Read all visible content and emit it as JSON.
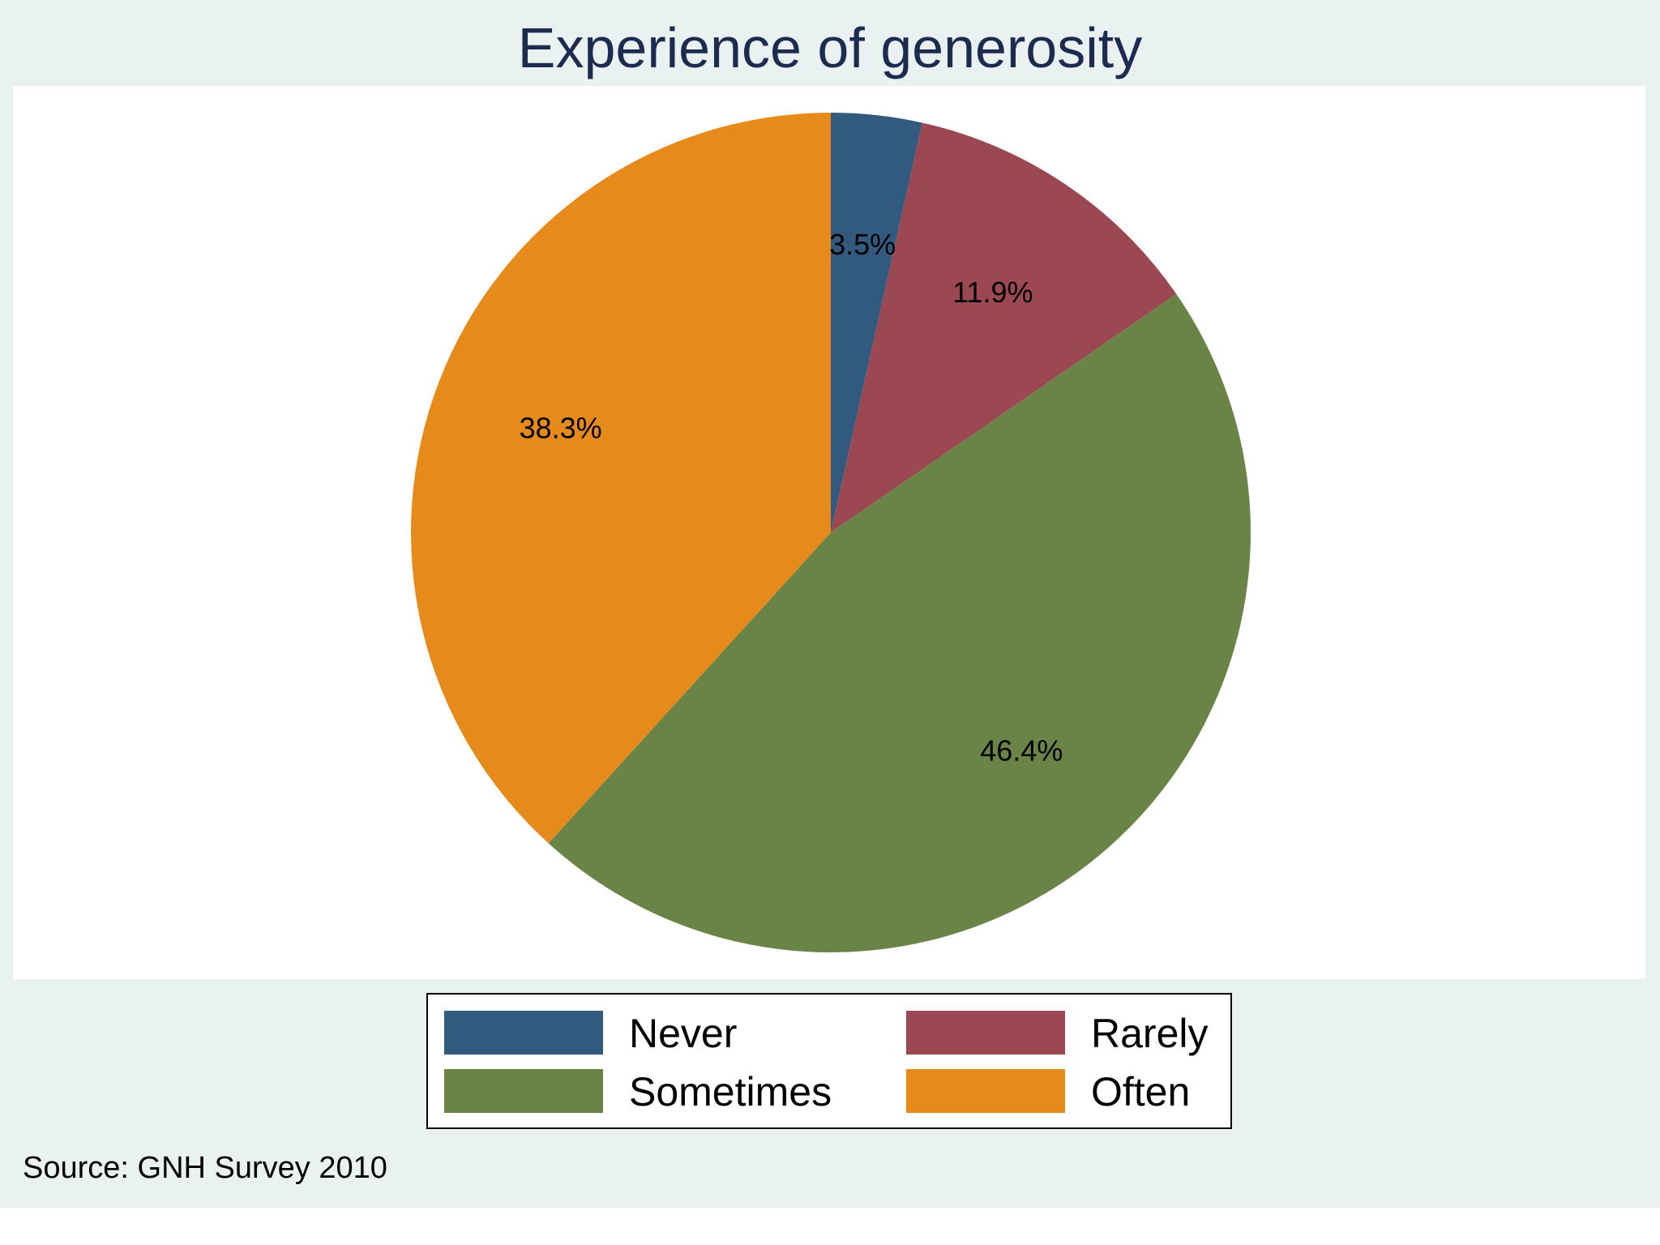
{
  "chart_data": {
    "type": "pie",
    "title": "Experience of generosity",
    "categories": [
      "Never",
      "Rarely",
      "Sometimes",
      "Often"
    ],
    "values": [
      3.5,
      11.9,
      46.4,
      38.3
    ],
    "value_labels": [
      "3.5%",
      "11.9%",
      "46.4%",
      "38.3%"
    ],
    "colors": [
      "#325a7f",
      "#9c4852",
      "#6a8347",
      "#e68a1c"
    ],
    "start_angle": "12 o'clock",
    "direction": "clockwise",
    "legend": {
      "placement": "bottom",
      "columns": 2
    },
    "note": "Source: GNH Survey 2010"
  }
}
